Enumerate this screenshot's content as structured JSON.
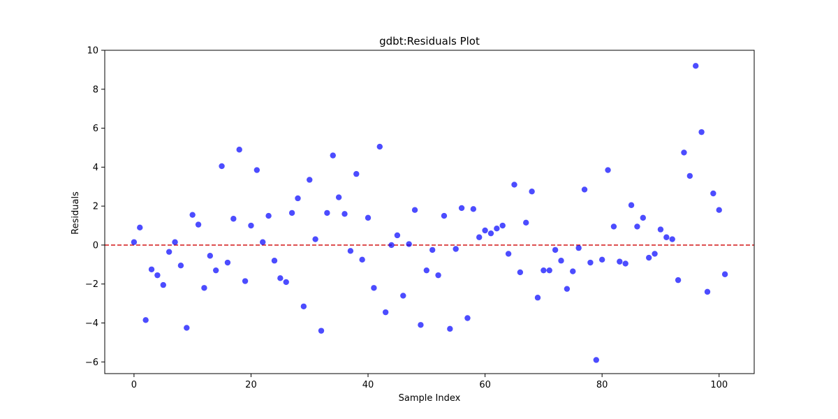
{
  "chart_data": {
    "type": "scatter",
    "title": "gdbt:Residuals Plot",
    "xlabel": "Sample Index",
    "ylabel": "Residuals",
    "xlim": [
      -5,
      106
    ],
    "ylim": [
      -6.6,
      10
    ],
    "xticks": [
      0,
      20,
      40,
      60,
      80,
      100
    ],
    "yticks": [
      -6,
      -4,
      -2,
      0,
      2,
      4,
      6,
      8,
      10
    ],
    "xtick_labels": [
      "0",
      "20",
      "40",
      "60",
      "80",
      "100"
    ],
    "ytick_labels": [
      "−6",
      "−4",
      "−2",
      "0",
      "2",
      "4",
      "6",
      "8",
      "10"
    ],
    "grid": false,
    "point_color": "#0000ff",
    "reference_line": {
      "y": 0,
      "color": "#d62728",
      "style": "dashed"
    },
    "x": [
      0,
      1,
      2,
      3,
      4,
      5,
      6,
      7,
      8,
      9,
      10,
      11,
      12,
      13,
      14,
      15,
      16,
      17,
      18,
      19,
      20,
      21,
      22,
      23,
      24,
      25,
      26,
      27,
      28,
      29,
      30,
      31,
      32,
      33,
      34,
      35,
      36,
      37,
      38,
      39,
      40,
      41,
      42,
      43,
      44,
      45,
      46,
      47,
      48,
      49,
      50,
      51,
      52,
      53,
      54,
      55,
      56,
      57,
      58,
      59,
      60,
      61,
      62,
      63,
      64,
      65,
      66,
      67,
      68,
      69,
      70,
      71,
      72,
      73,
      74,
      75,
      76,
      77,
      78,
      79,
      80,
      81,
      82,
      83,
      84,
      85,
      86,
      87,
      88,
      89,
      90,
      91,
      92,
      93,
      94,
      95,
      96,
      97,
      98,
      99,
      100,
      101
    ],
    "y": [
      0.15,
      0.9,
      -3.85,
      -1.25,
      -1.55,
      -2.05,
      -0.35,
      0.15,
      -1.05,
      -4.25,
      1.55,
      1.05,
      -2.2,
      -0.55,
      -1.3,
      4.05,
      -0.9,
      1.35,
      4.9,
      -1.85,
      1.0,
      3.85,
      0.15,
      1.5,
      -0.8,
      -1.7,
      -1.9,
      1.65,
      2.4,
      -3.15,
      3.35,
      0.3,
      -4.4,
      1.65,
      4.6,
      2.45,
      1.6,
      -0.3,
      3.65,
      -0.75,
      1.4,
      -2.2,
      5.05,
      -3.45,
      0.0,
      0.5,
      -2.6,
      0.05,
      1.8,
      -4.1,
      -1.3,
      -0.25,
      -1.55,
      1.5,
      -4.3,
      -0.2,
      1.9,
      -3.75,
      1.85,
      0.4,
      0.75,
      0.6,
      0.85,
      1.0,
      -0.45,
      3.1,
      -1.4,
      1.15,
      2.75,
      -2.7,
      -1.3,
      -1.3,
      -0.25,
      -0.8,
      -2.25,
      -1.35,
      -0.15,
      2.85,
      -0.9,
      -5.9,
      -0.75,
      3.85,
      0.95,
      -0.85,
      -0.95,
      2.05,
      0.95,
      1.4,
      -0.65,
      -0.45,
      0.8,
      0.4,
      0.3,
      -1.8,
      4.75,
      3.55,
      9.2,
      5.8,
      -2.4,
      2.65,
      1.8,
      -1.5
    ]
  }
}
